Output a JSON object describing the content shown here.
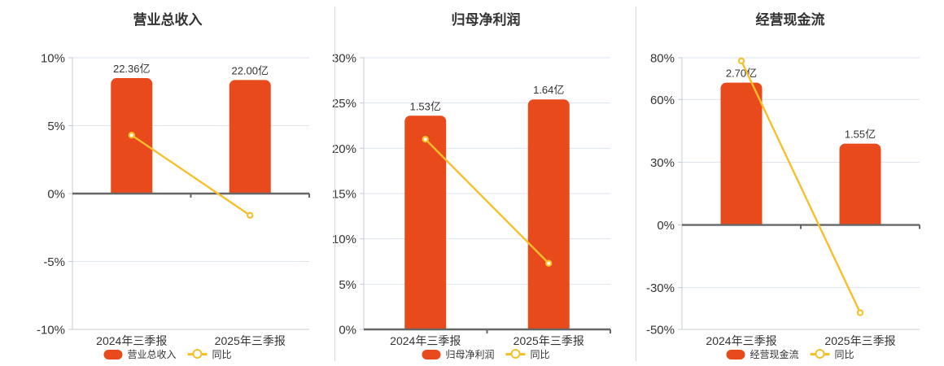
{
  "colors": {
    "bar": "#e84a1c",
    "line": "#f6c02b",
    "grid": "#dde4f0",
    "axis": "#c4cbd6",
    "zero_axis": "#666666",
    "text": "#333333",
    "separator": "#d8d8d8",
    "background": "#ffffff",
    "marker_fill": "#ffffff"
  },
  "chart_data": [
    {
      "type": "bar",
      "title": "营业总收入",
      "categories": [
        "2024年三季报",
        "2025年三季报"
      ],
      "series": [
        {
          "name": "营业总收入",
          "type": "bar",
          "amount_labels": [
            "22.36亿",
            "22.00亿"
          ],
          "plotted_pct": [
            8.5,
            8.36
          ]
        },
        {
          "name": "同比",
          "type": "line",
          "values_pct": [
            4.3,
            -1.6
          ]
        }
      ],
      "y_axis": {
        "unit": "%",
        "ticks_pct": [
          10,
          5,
          0,
          -5,
          -10
        ],
        "max": 10,
        "min": -10
      },
      "legend_position": "bottom",
      "grid": true
    },
    {
      "type": "bar",
      "title": "归母净利润",
      "categories": [
        "2024年三季报",
        "2025年三季报"
      ],
      "series": [
        {
          "name": "归母净利润",
          "type": "bar",
          "amount_labels": [
            "1.53亿",
            "1.64亿"
          ],
          "plotted_pct": [
            23.6,
            25.4
          ]
        },
        {
          "name": "同比",
          "type": "line",
          "values_pct": [
            21.0,
            7.3
          ]
        }
      ],
      "y_axis": {
        "unit": "%",
        "ticks_pct": [
          30,
          25,
          20,
          15,
          10,
          5,
          0
        ],
        "max": 30,
        "min": 0
      },
      "legend_position": "bottom",
      "grid": true
    },
    {
      "type": "bar",
      "title": "经营现金流",
      "categories": [
        "2024年三季报",
        "2025年三季报"
      ],
      "series": [
        {
          "name": "经营现金流",
          "type": "bar",
          "amount_labels": [
            "2.70亿",
            "1.55亿"
          ],
          "plotted_pct": [
            68.1,
            38.9
          ]
        },
        {
          "name": "同比",
          "type": "line",
          "values_pct": [
            78.5,
            -42.0
          ]
        }
      ],
      "y_axis": {
        "unit": "%",
        "ticks_pct": [
          80,
          60,
          30,
          0,
          -30,
          -50
        ],
        "max": 80,
        "min": -50
      },
      "legend_position": "bottom",
      "grid": true
    }
  ]
}
